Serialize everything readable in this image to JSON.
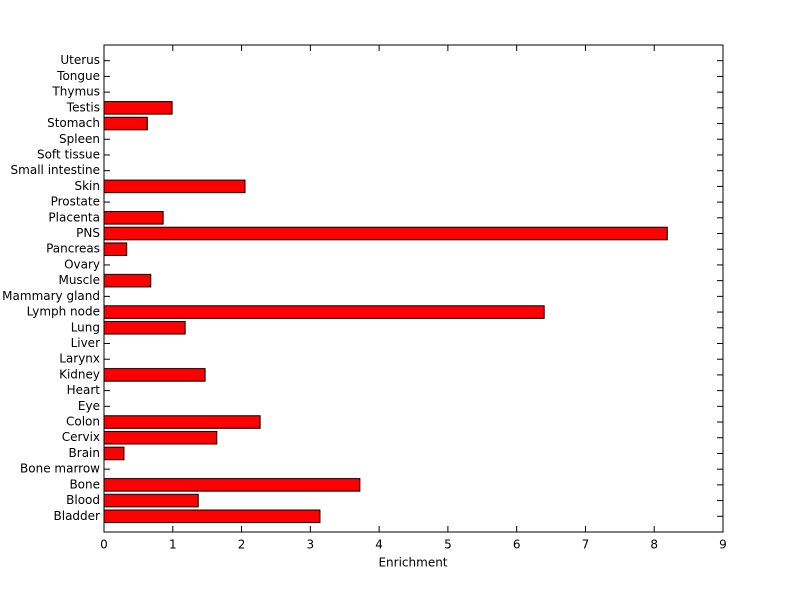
{
  "chart_data": {
    "type": "barh",
    "xlabel": "Enrichment",
    "categories": [
      "Bladder",
      "Blood",
      "Bone",
      "Bone marrow",
      "Brain",
      "Cervix",
      "Colon",
      "Eye",
      "Heart",
      "Kidney",
      "Larynx",
      "Liver",
      "Lung",
      "Lymph node",
      "Mammary gland",
      "Muscle",
      "Ovary",
      "Pancreas",
      "PNS",
      "Placenta",
      "Prostate",
      "Skin",
      "Small intestine",
      "Soft tissue",
      "Spleen",
      "Stomach",
      "Testis",
      "Thymus",
      "Tongue",
      "Uterus"
    ],
    "values": [
      3.14,
      1.37,
      3.72,
      0,
      0.29,
      1.64,
      2.27,
      0,
      0,
      1.47,
      0,
      0,
      1.18,
      6.4,
      0,
      0.68,
      0,
      0.33,
      8.19,
      0.86,
      0,
      2.05,
      0,
      0,
      0,
      0.63,
      0.99,
      0,
      0,
      0
    ],
    "color": "#ff0000",
    "xlim": [
      0,
      9
    ],
    "xticks": [
      0,
      1,
      2,
      3,
      4,
      5,
      6,
      7,
      8,
      9
    ]
  }
}
